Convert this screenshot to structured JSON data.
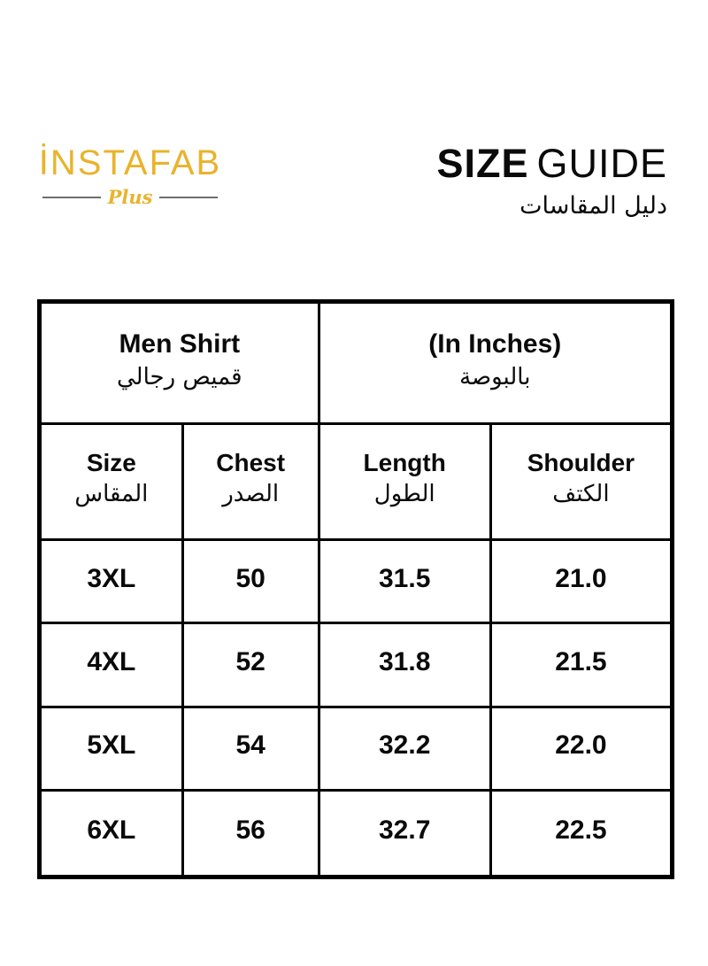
{
  "brand": {
    "name": "İNSTAFAB",
    "sub": "Plus"
  },
  "title": {
    "en_bold": "SIZE",
    "en_light": "GUIDE",
    "ar": "دليل المقاسات"
  },
  "table": {
    "header1": {
      "left_en": "Men Shirt",
      "left_ar": "قميص رجالي",
      "right_en": "(In Inches)",
      "right_ar": "بالبوصة"
    },
    "columns": [
      {
        "en": "Size",
        "ar": "المقاس"
      },
      {
        "en": "Chest",
        "ar": "الصدر"
      },
      {
        "en": "Length",
        "ar": "الطول"
      },
      {
        "en": "Shoulder",
        "ar": "الكتف"
      }
    ],
    "rows": [
      {
        "size": "3XL",
        "chest": "50",
        "length": "31.5",
        "shoulder": "21.0"
      },
      {
        "size": "4XL",
        "chest": "52",
        "length": "31.8",
        "shoulder": "21.5"
      },
      {
        "size": "5XL",
        "chest": "54",
        "length": "32.2",
        "shoulder": "22.0"
      },
      {
        "size": "6XL",
        "chest": "56",
        "length": "32.7",
        "shoulder": "22.5"
      }
    ]
  },
  "colors": {
    "gold": "#E9B32B",
    "line_gray": "#6E6E6E",
    "text_black": "#0A0A0A",
    "border_black": "#000000"
  },
  "chart_data": {
    "type": "table",
    "title": "SIZE GUIDE",
    "title_ar": "دليل المقاسات",
    "brand": "İNSTAFAB Plus",
    "product": "Men Shirt",
    "product_ar": "قميص رجالي",
    "units": "(In Inches)",
    "units_ar": "بالبوصة",
    "columns": [
      "Size",
      "Chest",
      "Length",
      "Shoulder"
    ],
    "columns_ar": [
      "المقاس",
      "الصدر",
      "الطول",
      "الكتف"
    ],
    "rows": [
      [
        "3XL",
        "50",
        "31.5",
        "21.0"
      ],
      [
        "4XL",
        "52",
        "31.8",
        "21.5"
      ],
      [
        "5XL",
        "54",
        "32.2",
        "22.0"
      ],
      [
        "6XL",
        "56",
        "32.7",
        "22.5"
      ]
    ],
    "layout": {
      "grid": true,
      "header_rows": 2,
      "border": "black"
    }
  }
}
